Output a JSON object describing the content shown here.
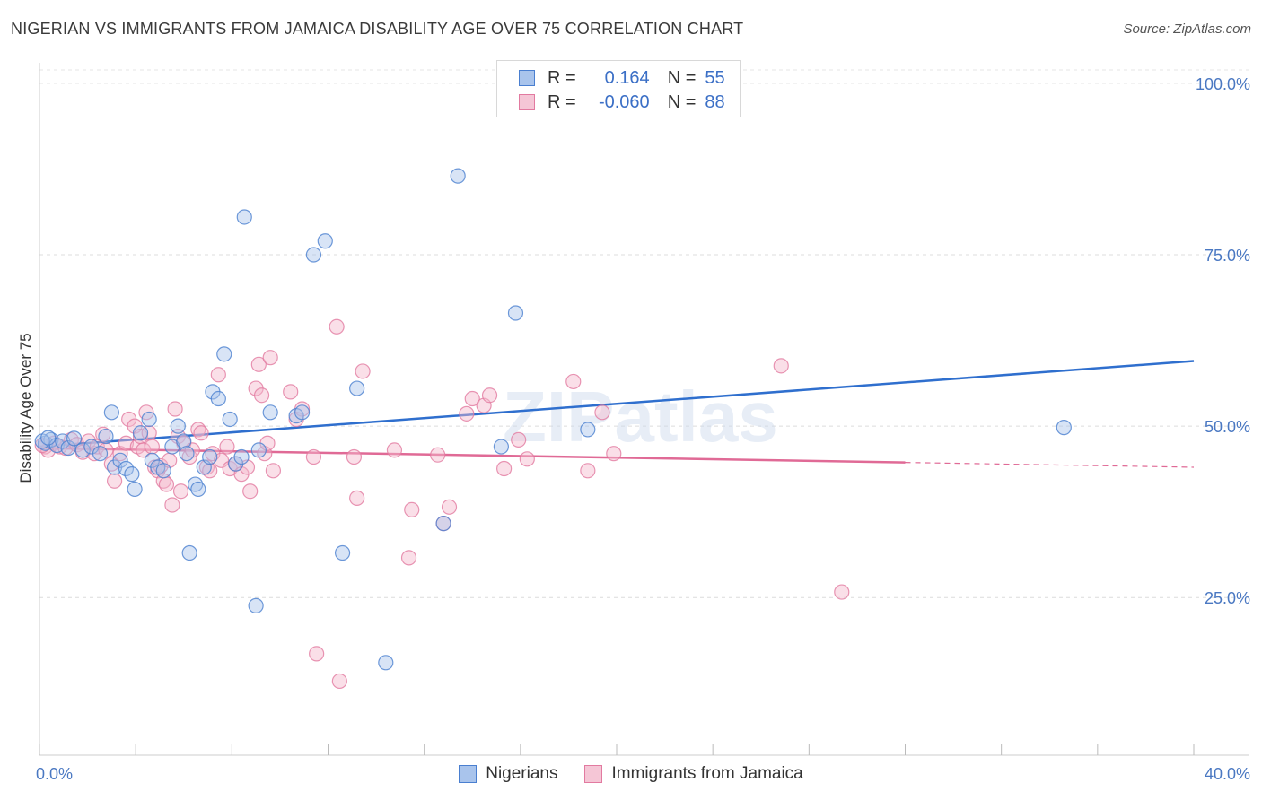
{
  "header": {
    "title": "NIGERIAN VS IMMIGRANTS FROM JAMAICA DISABILITY AGE OVER 75 CORRELATION CHART",
    "source": "Source: ZipAtlas.com"
  },
  "watermark": "ZIPatlas",
  "legend": {
    "rows": [
      {
        "r_label": "R =",
        "r_value": "0.164",
        "n_label": "N =",
        "n_value": "55"
      },
      {
        "r_label": "R =",
        "r_value": "-0.060",
        "n_label": "N =",
        "n_value": "88"
      }
    ]
  },
  "bottom_legend": {
    "items": [
      {
        "label": "Nigerians"
      },
      {
        "label": "Immigrants from Jamaica"
      }
    ]
  },
  "colors": {
    "blue_fill": "#a9c4ec",
    "blue_stroke": "#4a7fd0",
    "blue_line": "#2f6fce",
    "pink_fill": "#f5b7cc",
    "pink_stroke": "#e27aa0",
    "pink_line": "#e06a96"
  },
  "chart_data": {
    "type": "scatter",
    "title": "NIGERIAN VS IMMIGRANTS FROM JAMAICA DISABILITY AGE OVER 75 CORRELATION CHART",
    "xlabel": "",
    "ylabel": "Disability Age Over 75",
    "xlim": [
      0,
      40
    ],
    "ylim": [
      2,
      103
    ],
    "x_tick_labels": [
      "0.0%",
      "40.0%"
    ],
    "y_ticks": [
      25,
      50,
      75,
      100
    ],
    "y_tick_labels": [
      "25.0%",
      "50.0%",
      "75.0%",
      "100.0%"
    ],
    "grid": true,
    "series": [
      {
        "name": "Nigerians",
        "r": 0.164,
        "n": 55,
        "trend": {
          "x0": 0,
          "y0": 47.0,
          "x1": 40,
          "y1": 59.5
        },
        "points": [
          [
            0.2,
            47.5
          ],
          [
            0.4,
            48.0
          ],
          [
            0.6,
            47.2
          ],
          [
            0.8,
            47.8
          ],
          [
            1.0,
            46.8
          ],
          [
            1.2,
            48.2
          ],
          [
            1.5,
            46.5
          ],
          [
            1.8,
            47.0
          ],
          [
            2.1,
            46.0
          ],
          [
            2.3,
            48.5
          ],
          [
            2.5,
            52.0
          ],
          [
            2.6,
            44.0
          ],
          [
            2.8,
            45.0
          ],
          [
            3.0,
            43.8
          ],
          [
            3.2,
            43.0
          ],
          [
            3.3,
            40.8
          ],
          [
            3.5,
            49.0
          ],
          [
            3.8,
            51.0
          ],
          [
            3.9,
            45.0
          ],
          [
            4.1,
            44.0
          ],
          [
            4.3,
            43.5
          ],
          [
            4.6,
            47.0
          ],
          [
            4.8,
            50.0
          ],
          [
            5.0,
            47.8
          ],
          [
            5.1,
            46.0
          ],
          [
            5.2,
            31.5
          ],
          [
            5.4,
            41.5
          ],
          [
            5.5,
            40.8
          ],
          [
            5.7,
            44.0
          ],
          [
            5.9,
            45.5
          ],
          [
            6.0,
            55.0
          ],
          [
            6.2,
            54.0
          ],
          [
            6.4,
            60.5
          ],
          [
            6.6,
            51.0
          ],
          [
            6.8,
            44.5
          ],
          [
            7.0,
            45.5
          ],
          [
            7.1,
            80.5
          ],
          [
            7.6,
            46.5
          ],
          [
            7.5,
            23.8
          ],
          [
            8.0,
            52.0
          ],
          [
            8.9,
            51.5
          ],
          [
            9.1,
            52.0
          ],
          [
            9.5,
            75.0
          ],
          [
            9.9,
            77.0
          ],
          [
            10.5,
            31.5
          ],
          [
            11.0,
            55.5
          ],
          [
            12.0,
            15.5
          ],
          [
            14.0,
            35.8
          ],
          [
            14.5,
            86.5
          ],
          [
            16.0,
            47.0
          ],
          [
            16.5,
            66.5
          ],
          [
            19.0,
            49.5
          ],
          [
            35.5,
            49.8
          ],
          [
            0.1,
            47.8
          ],
          [
            0.3,
            48.3
          ]
        ]
      },
      {
        "name": "Immigrants from Jamaica",
        "r": -0.06,
        "n": 88,
        "trend": {
          "x0": 0,
          "y0": 46.8,
          "x1": 40,
          "y1": 44.0
        },
        "trend_solid_until": 30,
        "points": [
          [
            0.2,
            47.0
          ],
          [
            0.3,
            46.5
          ],
          [
            0.5,
            47.5
          ],
          [
            0.7,
            47.0
          ],
          [
            0.9,
            46.8
          ],
          [
            1.1,
            48.0
          ],
          [
            1.3,
            47.3
          ],
          [
            1.5,
            46.2
          ],
          [
            1.7,
            47.8
          ],
          [
            1.9,
            46.0
          ],
          [
            2.0,
            47.0
          ],
          [
            2.2,
            48.8
          ],
          [
            2.3,
            46.5
          ],
          [
            2.5,
            44.5
          ],
          [
            2.6,
            42.0
          ],
          [
            2.8,
            46.0
          ],
          [
            3.0,
            47.5
          ],
          [
            3.1,
            51.0
          ],
          [
            3.3,
            50.0
          ],
          [
            3.4,
            47.0
          ],
          [
            3.5,
            48.5
          ],
          [
            3.6,
            46.5
          ],
          [
            3.7,
            52.0
          ],
          [
            3.8,
            49.0
          ],
          [
            3.9,
            47.0
          ],
          [
            4.0,
            44.0
          ],
          [
            4.1,
            43.5
          ],
          [
            4.2,
            44.2
          ],
          [
            4.3,
            42.0
          ],
          [
            4.4,
            41.5
          ],
          [
            4.5,
            45.0
          ],
          [
            4.6,
            38.5
          ],
          [
            4.7,
            52.5
          ],
          [
            4.8,
            48.5
          ],
          [
            4.9,
            40.5
          ],
          [
            5.0,
            47.5
          ],
          [
            5.2,
            45.5
          ],
          [
            5.3,
            46.5
          ],
          [
            5.5,
            49.5
          ],
          [
            5.6,
            49.0
          ],
          [
            5.8,
            44.0
          ],
          [
            5.9,
            43.5
          ],
          [
            6.0,
            46.0
          ],
          [
            6.2,
            57.5
          ],
          [
            6.3,
            45.0
          ],
          [
            6.5,
            47.0
          ],
          [
            6.6,
            43.8
          ],
          [
            6.8,
            44.5
          ],
          [
            7.0,
            43.0
          ],
          [
            7.2,
            44.0
          ],
          [
            7.3,
            40.5
          ],
          [
            7.5,
            55.5
          ],
          [
            7.6,
            59.0
          ],
          [
            7.7,
            54.5
          ],
          [
            7.8,
            46.0
          ],
          [
            7.9,
            47.5
          ],
          [
            8.0,
            60.0
          ],
          [
            8.1,
            43.5
          ],
          [
            8.7,
            55.0
          ],
          [
            8.9,
            51.0
          ],
          [
            9.1,
            52.5
          ],
          [
            9.5,
            45.5
          ],
          [
            9.6,
            16.8
          ],
          [
            10.3,
            64.5
          ],
          [
            10.4,
            12.8
          ],
          [
            10.9,
            45.5
          ],
          [
            11.0,
            39.5
          ],
          [
            11.2,
            58.0
          ],
          [
            12.3,
            46.5
          ],
          [
            12.8,
            30.8
          ],
          [
            12.9,
            37.8
          ],
          [
            13.8,
            45.8
          ],
          [
            14.0,
            35.8
          ],
          [
            14.2,
            38.2
          ],
          [
            14.8,
            51.8
          ],
          [
            15.0,
            54.0
          ],
          [
            15.4,
            53.0
          ],
          [
            15.6,
            54.5
          ],
          [
            16.1,
            43.8
          ],
          [
            16.6,
            48.0
          ],
          [
            16.9,
            45.2
          ],
          [
            18.5,
            56.5
          ],
          [
            19.0,
            43.5
          ],
          [
            19.5,
            52.0
          ],
          [
            19.9,
            46.0
          ],
          [
            25.7,
            58.8
          ],
          [
            27.8,
            25.8
          ],
          [
            0.1,
            47.2
          ]
        ]
      }
    ]
  }
}
